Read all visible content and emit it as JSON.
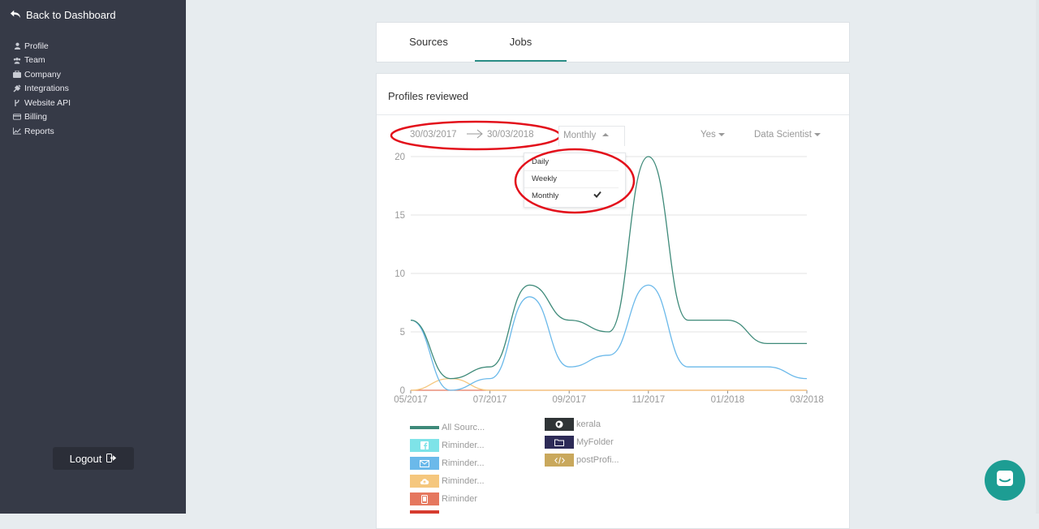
{
  "sidebar": {
    "back_label": "Back to Dashboard",
    "items": [
      {
        "label": "Profile",
        "icon": "user-icon"
      },
      {
        "label": "Team",
        "icon": "users-icon"
      },
      {
        "label": "Company",
        "icon": "briefcase-icon"
      },
      {
        "label": "Integrations",
        "icon": "plug-icon"
      },
      {
        "label": "Website API",
        "icon": "code-branch-icon"
      },
      {
        "label": "Billing",
        "icon": "credit-card-icon"
      },
      {
        "label": "Reports",
        "icon": "line-chart-icon"
      }
    ],
    "logout_label": "Logout"
  },
  "tabs": [
    {
      "label": "Sources",
      "active": false
    },
    {
      "label": "Jobs",
      "active": true
    }
  ],
  "panel": {
    "title": "Profiles reviewed",
    "date_from": "30/03/2017",
    "date_to": "30/03/2018",
    "granularity": "Monthly",
    "filter_hired": "Yes",
    "filter_job": "Data Scientist",
    "granularity_options": [
      {
        "label": "Daily",
        "selected": false
      },
      {
        "label": "Weekly",
        "selected": false
      },
      {
        "label": "Monthly",
        "selected": true
      }
    ]
  },
  "chart_data": {
    "type": "line",
    "x": [
      "05/2017",
      "06/2017",
      "07/2017",
      "08/2017",
      "09/2017",
      "10/2017",
      "11/2017",
      "12/2017",
      "01/2018",
      "02/2018",
      "03/2018"
    ],
    "x_tick_labels": [
      "05/2017",
      "07/2017",
      "09/2017",
      "11/2017",
      "01/2018",
      "03/2018"
    ],
    "y_ticks": [
      0,
      5,
      10,
      15,
      20
    ],
    "ylim": [
      0,
      20
    ],
    "grid": true,
    "series": [
      {
        "name": "All Sourc...",
        "color": "#3e8a79",
        "values": [
          6,
          1,
          2,
          9,
          6,
          5,
          20,
          6,
          6,
          4,
          4
        ]
      },
      {
        "name": "Riminder...",
        "color": "#6bb9ea",
        "values": [
          6,
          0,
          1,
          8,
          2,
          3,
          9,
          2,
          2,
          2,
          1
        ]
      },
      {
        "name": "Riminder...",
        "color": "#f5c77e",
        "values": [
          0,
          1,
          0,
          0,
          0,
          0,
          0,
          0,
          0,
          0,
          0
        ]
      },
      {
        "name": "Riminder",
        "color": "#e5775e",
        "values": [
          0,
          0,
          0,
          0,
          0,
          0,
          0,
          0,
          0,
          0,
          0
        ]
      }
    ]
  },
  "legend": {
    "left": [
      {
        "label": "All Sourc...",
        "color": "#3e8a79",
        "icon": "line-swatch"
      },
      {
        "label": "Riminder...",
        "color": "#7ee3e8",
        "icon": "facebook-icon"
      },
      {
        "label": "Riminder...",
        "color": "#6bb9ea",
        "icon": "envelope-icon"
      },
      {
        "label": "Riminder...",
        "color": "#f5c77e",
        "icon": "cloud-upload-icon"
      },
      {
        "label": "Riminder",
        "color": "#e5775e",
        "icon": "tablet-icon"
      }
    ],
    "right": [
      {
        "label": "kerala",
        "color": "#2f3436",
        "icon": "globe-icon"
      },
      {
        "label": "MyFolder",
        "color": "#2d2b57",
        "icon": "folder-icon"
      },
      {
        "label": "postProfi...",
        "color": "#c9a85c",
        "icon": "code-icon"
      }
    ]
  }
}
